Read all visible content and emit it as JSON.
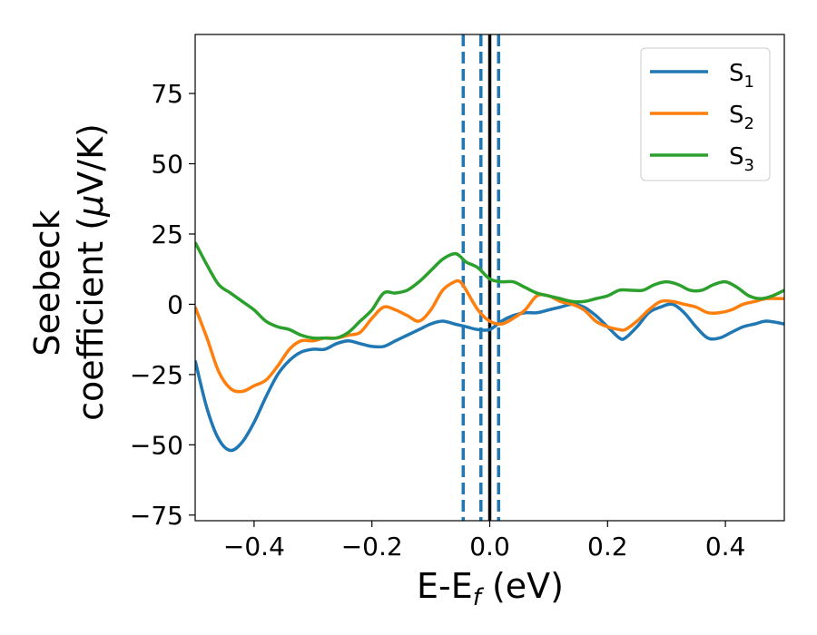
{
  "chart_data": {
    "type": "line",
    "title": "",
    "xlabel": {
      "text": "E-E",
      "sub": "f",
      "suffix": " (eV)"
    },
    "ylabel": {
      "line1": "Seebeck",
      "line2_pre": "coefficient  (",
      "line2_mu": "μ",
      "line2_post": "V/K)"
    },
    "xlim": [
      -0.5,
      0.5
    ],
    "ylim": [
      -77,
      96
    ],
    "xticks": [
      -0.4,
      -0.2,
      0.0,
      0.2,
      0.4
    ],
    "xtick_labels": [
      "−0.4",
      "−0.2",
      "0.0",
      "0.2",
      "0.4"
    ],
    "yticks": [
      -75,
      -50,
      -25,
      0,
      25,
      50,
      75
    ],
    "ytick_labels": [
      "−75",
      "−50",
      "−25",
      "0",
      "25",
      "50",
      "75"
    ],
    "grid": false,
    "legend_position": "top-right",
    "series": [
      {
        "name": "S",
        "sub": "1",
        "color": "#1f77b4",
        "x": [
          -0.5,
          -0.48,
          -0.46,
          -0.44,
          -0.42,
          -0.4,
          -0.38,
          -0.36,
          -0.34,
          -0.32,
          -0.3,
          -0.28,
          -0.26,
          -0.24,
          -0.22,
          -0.2,
          -0.18,
          -0.16,
          -0.14,
          -0.12,
          -0.1,
          -0.08,
          -0.06,
          -0.04,
          -0.02,
          0.0,
          0.02,
          0.04,
          0.06,
          0.08,
          0.1,
          0.12,
          0.14,
          0.16,
          0.18,
          0.2,
          0.22,
          0.23,
          0.25,
          0.27,
          0.29,
          0.31,
          0.33,
          0.35,
          0.37,
          0.39,
          0.41,
          0.43,
          0.45,
          0.47,
          0.5
        ],
        "y": [
          -20,
          -37,
          -48,
          -52,
          -49,
          -42,
          -33,
          -25,
          -20,
          -17,
          -16,
          -16,
          -14,
          -13,
          -14,
          -15,
          -15,
          -13,
          -11,
          -9,
          -7,
          -6,
          -7,
          -8,
          -9,
          -9,
          -6,
          -4,
          -3,
          -3,
          -2,
          -1,
          0,
          -1,
          -4,
          -8,
          -12,
          -12,
          -8,
          -3,
          -1,
          0,
          -3,
          -8,
          -12,
          -12,
          -10,
          -8,
          -7,
          -6,
          -7
        ]
      },
      {
        "name": "S",
        "sub": "2",
        "color": "#ff7f0e",
        "x": [
          -0.5,
          -0.48,
          -0.46,
          -0.44,
          -0.42,
          -0.4,
          -0.38,
          -0.36,
          -0.34,
          -0.32,
          -0.3,
          -0.28,
          -0.26,
          -0.24,
          -0.22,
          -0.2,
          -0.18,
          -0.16,
          -0.14,
          -0.12,
          -0.1,
          -0.08,
          -0.06,
          -0.05,
          -0.04,
          -0.02,
          0.0,
          0.02,
          0.04,
          0.06,
          0.08,
          0.1,
          0.12,
          0.14,
          0.16,
          0.18,
          0.2,
          0.22,
          0.23,
          0.25,
          0.27,
          0.29,
          0.31,
          0.33,
          0.35,
          0.37,
          0.39,
          0.41,
          0.43,
          0.45,
          0.47,
          0.5
        ],
        "y": [
          -1,
          -12,
          -24,
          -30,
          -31,
          -29,
          -27,
          -22,
          -16,
          -13,
          -13,
          -12,
          -12,
          -11,
          -10,
          -5,
          -1,
          -2,
          -4,
          -6,
          -2,
          5,
          8,
          8,
          5,
          -2,
          -6,
          -7,
          -5,
          -2,
          3,
          3,
          1,
          0,
          -2,
          -6,
          -8,
          -9,
          -9,
          -6,
          -2,
          1,
          1,
          0,
          -1,
          -3,
          -3,
          -2,
          0,
          1,
          2,
          2
        ]
      },
      {
        "name": "S",
        "sub": "3",
        "color": "#2ca02c",
        "x": [
          -0.5,
          -0.48,
          -0.46,
          -0.44,
          -0.42,
          -0.4,
          -0.38,
          -0.36,
          -0.34,
          -0.32,
          -0.3,
          -0.28,
          -0.26,
          -0.24,
          -0.22,
          -0.2,
          -0.18,
          -0.16,
          -0.14,
          -0.12,
          -0.1,
          -0.08,
          -0.06,
          -0.05,
          -0.04,
          -0.02,
          0.0,
          0.02,
          0.04,
          0.06,
          0.08,
          0.1,
          0.12,
          0.14,
          0.16,
          0.18,
          0.2,
          0.22,
          0.24,
          0.26,
          0.28,
          0.3,
          0.32,
          0.34,
          0.36,
          0.38,
          0.4,
          0.42,
          0.44,
          0.46,
          0.48,
          0.5
        ],
        "y": [
          22,
          14,
          7,
          4,
          1,
          -2,
          -6,
          -8,
          -9,
          -11,
          -12,
          -12,
          -12,
          -10,
          -6,
          -2,
          4,
          4,
          5,
          8,
          12,
          16,
          18,
          17,
          15,
          13,
          9,
          8,
          8,
          6,
          4,
          3,
          2,
          1,
          1,
          2,
          3,
          5,
          5,
          5,
          7,
          8,
          7,
          5,
          5,
          7,
          8,
          6,
          3,
          2,
          3,
          5
        ]
      }
    ],
    "vlines": [
      {
        "x": -0.045,
        "color": "#1f77b4",
        "style": "dashed"
      },
      {
        "x": -0.015,
        "color": "#1f77b4",
        "style": "dashed"
      },
      {
        "x": 0.015,
        "color": "#1f77b4",
        "style": "dashed"
      },
      {
        "x": 0.0,
        "color": "#000000",
        "style": "solid"
      }
    ]
  }
}
